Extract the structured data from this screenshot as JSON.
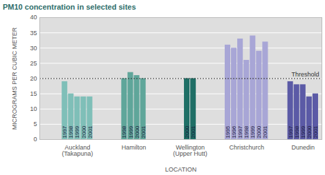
{
  "chart_data": {
    "type": "bar",
    "title": "PM10 concentration in selected sites",
    "x_label": "LOCATION",
    "y_label": "MICROGRAMS PER CUBIC METER",
    "ylim": [
      0,
      40
    ],
    "yticks": [
      0,
      5,
      10,
      15,
      20,
      25,
      30,
      35,
      40
    ],
    "grid": true,
    "threshold": {
      "label": "Threshold",
      "value": 20
    },
    "series": [
      {
        "name": "Auckland (Takapuna)",
        "color": "#7fbfb8",
        "x": [
          "1997",
          "1998",
          "1999",
          "2000",
          "2001"
        ],
        "values": [
          19,
          15,
          14,
          14,
          14
        ]
      },
      {
        "name": "Hamilton",
        "color": "#5fa69a",
        "x": [
          "1998",
          "1999",
          "2000",
          "2001"
        ],
        "values": [
          20,
          22,
          21,
          20
        ]
      },
      {
        "name": "Wellington (Upper Hutt)",
        "color": "#1f6f66",
        "x": [
          "2000",
          "2001"
        ],
        "values": [
          20,
          20
        ]
      },
      {
        "name": "Christchurch",
        "color": "#a8a6d6",
        "x": [
          "1995",
          "1996",
          "1997",
          "1998",
          "1999",
          "2000",
          "2001"
        ],
        "values": [
          31,
          30,
          33,
          26,
          34,
          29,
          32
        ]
      },
      {
        "name": "Dunedin",
        "color": "#5b5aa6",
        "x": [
          "1997",
          "1998",
          "1999",
          "2000",
          "2001"
        ],
        "values": [
          19,
          18,
          18,
          14,
          15
        ]
      }
    ]
  }
}
